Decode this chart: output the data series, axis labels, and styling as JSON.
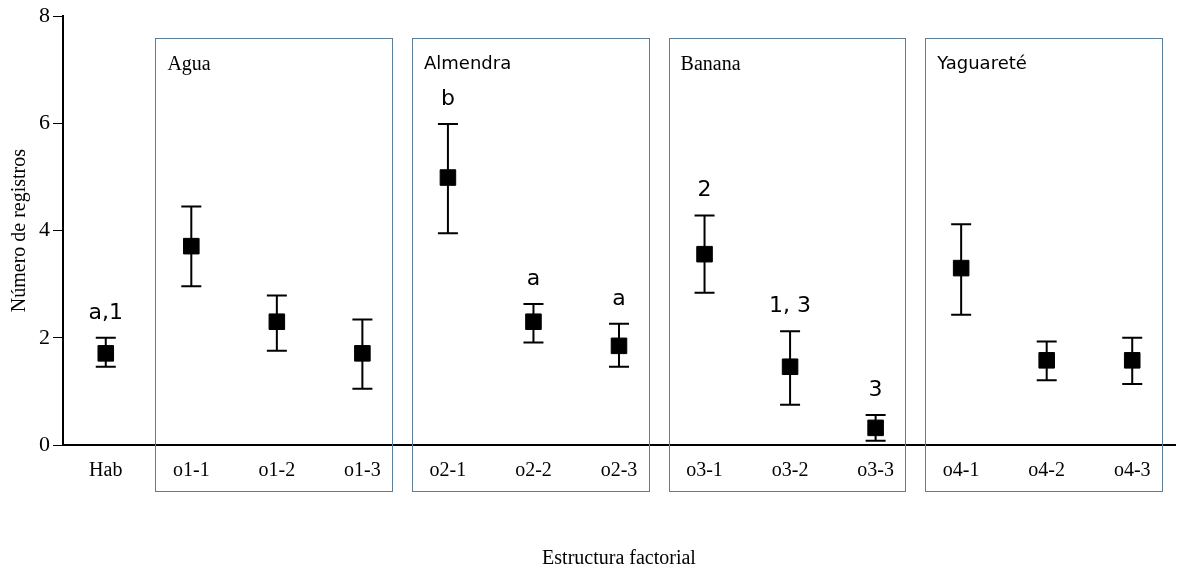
{
  "chart_data": {
    "type": "scatter",
    "xlabel": "Estructura factorial",
    "ylabel": "Número de registros",
    "categories": [
      "Hab",
      "o1-1",
      "o1-2",
      "o1-3",
      "o2-1",
      "o2-2",
      "o2-3",
      "o3-1",
      "o3-2",
      "o3-3",
      "o4-1",
      "o4-2",
      "o4-3"
    ],
    "series": [
      {
        "color": "#000000",
        "values": [
          1.71,
          3.71,
          2.3,
          1.71,
          4.99,
          2.3,
          1.85,
          3.56,
          1.46,
          0.32,
          3.3,
          1.58,
          1.58
        ],
        "errors": [
          [
            1.46,
            2.0
          ],
          [
            2.96,
            4.45
          ],
          [
            1.76,
            2.79
          ],
          [
            1.05,
            2.34
          ],
          [
            3.95,
            5.99
          ],
          [
            1.91,
            2.63
          ],
          [
            1.46,
            2.26
          ],
          [
            2.84,
            4.28
          ],
          [
            0.75,
            2.12
          ],
          [
            0.08,
            0.56
          ],
          [
            2.43,
            4.12
          ],
          [
            1.21,
            1.93
          ],
          [
            1.14,
            2.0
          ]
        ]
      }
    ],
    "marker": "square",
    "grid": false,
    "legend": false,
    "ylim": [
      0,
      8
    ],
    "yticks": [
      0,
      2,
      4,
      6,
      8
    ],
    "annotations": [
      "Agua",
      "Almendra",
      "Banana",
      "Yaguareté",
      "a,1",
      "b",
      "a",
      "a",
      "2",
      "1, 3",
      "3"
    ]
  }
}
